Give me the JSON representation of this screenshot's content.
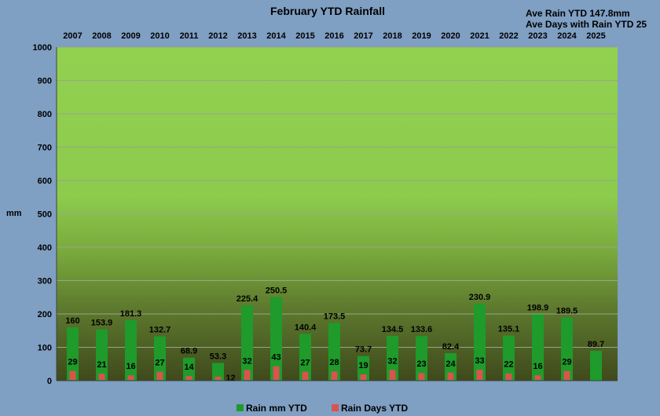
{
  "chart_data": {
    "type": "bar",
    "title": "February YTD Rainfall",
    "notes": [
      "Ave Rain YTD 147.8mm",
      "Ave Days with Rain YTD 25"
    ],
    "ylabel": "mm",
    "xlabel": "",
    "ylim": [
      0,
      1000
    ],
    "yticks": [
      0,
      100,
      200,
      300,
      400,
      500,
      600,
      700,
      800,
      900,
      1000
    ],
    "grid": true,
    "legend_position": "bottom",
    "categories": [
      "2007",
      "2008",
      "2009",
      "2010",
      "2011",
      "2012",
      "2013",
      "2014",
      "2015",
      "2016",
      "2017",
      "2018",
      "2019",
      "2020",
      "2021",
      "2022",
      "2023",
      "2024",
      "2025"
    ],
    "series": [
      {
        "name": "Rain mm  YTD",
        "color": "#1e9b2a",
        "values": [
          160,
          153.9,
          181.3,
          132.7,
          68.9,
          53.3,
          225.4,
          250.5,
          140.4,
          173.5,
          73.7,
          134.5,
          133.6,
          82.4,
          230.9,
          135.1,
          198.9,
          189.5,
          89.7
        ],
        "labels": [
          "160",
          "153.9",
          "181.3",
          "132.7",
          "68.9",
          "53.3",
          "225.4",
          "250.5",
          "140.4",
          "173.5",
          "73.7",
          "134.5",
          "133.6",
          "82.4",
          "230.9",
          "135.1",
          "198.9",
          "189.5",
          "89.7"
        ]
      },
      {
        "name": "Rain Days  YTD",
        "color": "#d9534f",
        "values": [
          29,
          21,
          16,
          27,
          14,
          12,
          32,
          43,
          27,
          28,
          19,
          32,
          23,
          24,
          33,
          22,
          16,
          29,
          null
        ],
        "labels": [
          "29",
          "21",
          "16",
          "27",
          "14",
          "12",
          "32",
          "43",
          "27",
          "28",
          "19",
          "32",
          "23",
          "24",
          "33",
          "22",
          "16",
          "29",
          ""
        ]
      }
    ]
  }
}
